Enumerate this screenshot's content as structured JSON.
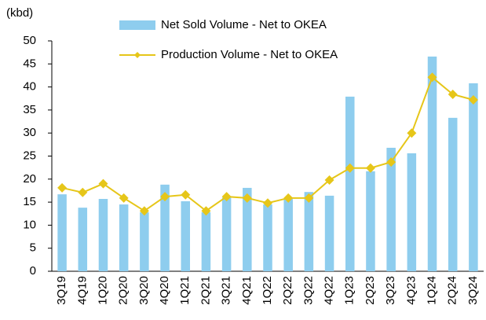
{
  "chart_data": {
    "type": "bar_line",
    "ylabel": "(kbd)",
    "categories": [
      "3Q19",
      "4Q19",
      "1Q20",
      "2Q20",
      "3Q20",
      "4Q20",
      "1Q21",
      "2Q21",
      "3Q21",
      "4Q21",
      "1Q22",
      "2Q22",
      "3Q22",
      "4Q22",
      "1Q23",
      "2Q23",
      "3Q23",
      "4Q23",
      "1Q24",
      "2Q24",
      "3Q24"
    ],
    "series": [
      {
        "name": "Net Sold Volume - Net to OKEA",
        "type": "bar",
        "color": "#8ecdee",
        "values": [
          16.7,
          13.8,
          15.7,
          14.5,
          12.8,
          18.8,
          15.2,
          12.8,
          16,
          18.1,
          14.5,
          15.7,
          17.2,
          16.4,
          37.9,
          21.7,
          26.8,
          25.6,
          46.6,
          33.3,
          40.8
        ]
      },
      {
        "name": "Production Volume - Net to OKEA",
        "type": "line",
        "color": "#e6c619",
        "values": [
          18.1,
          17.1,
          19,
          15.9,
          13.1,
          16.2,
          16.6,
          13.1,
          16.2,
          15.9,
          14.8,
          15.9,
          15.9,
          19.8,
          22.4,
          22.4,
          23.7,
          30,
          42.1,
          38.4,
          37.2
        ]
      }
    ],
    "ylim": [
      0,
      50
    ],
    "yticks": [
      0,
      5,
      10,
      15,
      20,
      25,
      30,
      35,
      40,
      45,
      50
    ],
    "grid": false
  }
}
